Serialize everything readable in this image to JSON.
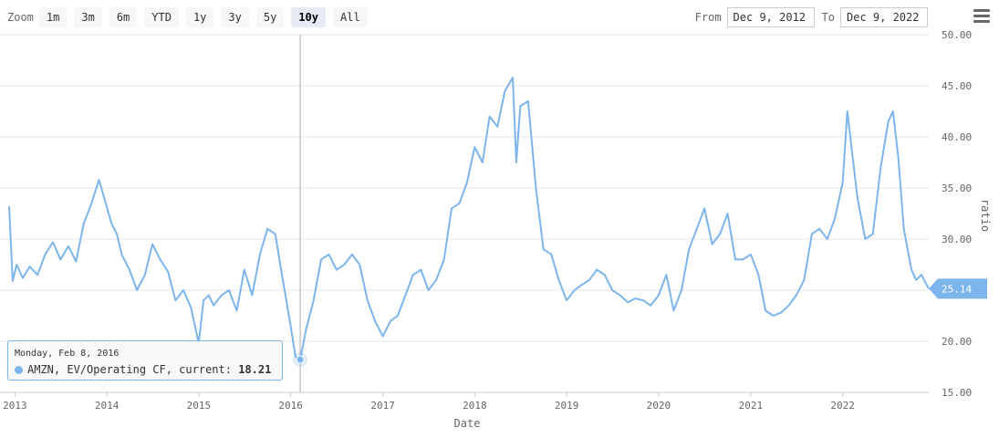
{
  "toolbar": {
    "zoom_label": "Zoom",
    "buttons": [
      "1m",
      "3m",
      "6m",
      "YTD",
      "1y",
      "3y",
      "5y",
      "10y",
      "All"
    ],
    "active": "10y"
  },
  "range": {
    "from_label": "From",
    "from_value": "Dec 9, 2012",
    "to_label": "To",
    "to_value": "Dec 9, 2022"
  },
  "menu": {
    "icon": "hamburger-menu-icon"
  },
  "tooltip": {
    "date": "Monday, Feb 8, 2016",
    "series_label": "AMZN, EV/Operating CF, current:",
    "value": "18.21"
  },
  "colors": {
    "series": "#7cb5ec",
    "grid": "#e6e6e6",
    "current_label_bg": "#7cb5ec"
  },
  "chart_data": {
    "type": "line",
    "title": "",
    "xlabel": "Date",
    "ylabel": "ratio",
    "ylim": [
      15,
      50
    ],
    "yticks": [
      "15.00",
      "20.00",
      "25.00",
      "30.00",
      "35.00",
      "40.00",
      "45.00",
      "50.00"
    ],
    "xticks": [
      "2013",
      "2014",
      "2015",
      "2016",
      "2017",
      "2018",
      "2019",
      "2020",
      "2021",
      "2022"
    ],
    "xlim": [
      "2012-12-09",
      "2022-12-09"
    ],
    "grid": true,
    "legend": "none",
    "current_label": "25.14",
    "highlight": {
      "x": "2016-02-08",
      "y": 18.21
    },
    "series": [
      {
        "name": "AMZN, EV/Operating CF",
        "x": [
          "2012-12-09",
          "2012-12-23",
          "2013-01-08",
          "2013-02-01",
          "2013-03-01",
          "2013-04-01",
          "2013-05-01",
          "2013-06-01",
          "2013-07-01",
          "2013-08-01",
          "2013-09-01",
          "2013-10-01",
          "2013-11-01",
          "2013-12-01",
          "2014-01-20",
          "2014-02-10",
          "2014-03-01",
          "2014-04-01",
          "2014-05-01",
          "2014-06-01",
          "2014-07-01",
          "2014-08-01",
          "2014-09-01",
          "2014-10-01",
          "2014-11-01",
          "2014-12-01",
          "2015-01-01",
          "2015-01-20",
          "2015-02-10",
          "2015-03-01",
          "2015-04-01",
          "2015-05-01",
          "2015-06-01",
          "2015-07-01",
          "2015-08-01",
          "2015-09-01",
          "2015-10-01",
          "2015-11-01",
          "2015-12-01",
          "2016-01-01",
          "2016-01-20",
          "2016-02-08",
          "2016-03-01",
          "2016-04-01",
          "2016-05-01",
          "2016-06-01",
          "2016-07-01",
          "2016-08-01",
          "2016-09-01",
          "2016-10-01",
          "2016-11-01",
          "2016-12-01",
          "2017-01-01",
          "2017-02-01",
          "2017-03-01",
          "2017-04-01",
          "2017-05-01",
          "2017-06-01",
          "2017-07-01",
          "2017-08-01",
          "2017-09-01",
          "2017-10-01",
          "2017-11-01",
          "2017-12-01",
          "2018-01-01",
          "2018-02-01",
          "2018-03-01",
          "2018-04-01",
          "2018-05-01",
          "2018-06-01",
          "2018-06-15",
          "2018-07-01",
          "2018-08-01",
          "2018-09-01",
          "2018-10-01",
          "2018-11-01",
          "2018-12-01",
          "2019-01-01",
          "2019-02-01",
          "2019-03-01",
          "2019-04-01",
          "2019-05-01",
          "2019-06-01",
          "2019-07-01",
          "2019-08-01",
          "2019-09-01",
          "2019-10-01",
          "2019-11-01",
          "2019-12-01",
          "2020-01-01",
          "2020-02-01",
          "2020-03-01",
          "2020-04-01",
          "2020-05-01",
          "2020-06-01",
          "2020-07-01",
          "2020-08-01",
          "2020-09-01",
          "2020-10-01",
          "2020-11-01",
          "2020-12-01",
          "2021-01-01",
          "2021-02-01",
          "2021-03-01",
          "2021-04-01",
          "2021-05-01",
          "2021-06-01",
          "2021-07-01",
          "2021-08-01",
          "2021-09-01",
          "2021-10-01",
          "2021-11-01",
          "2021-12-01",
          "2022-01-01",
          "2022-01-20",
          "2022-02-10",
          "2022-03-01",
          "2022-04-01",
          "2022-05-01",
          "2022-06-01",
          "2022-07-01",
          "2022-07-20",
          "2022-08-10",
          "2022-09-01",
          "2022-10-01",
          "2022-10-20",
          "2022-11-10",
          "2022-12-09"
        ],
        "values": [
          33.2,
          25.9,
          27.5,
          26.2,
          27.3,
          26.5,
          28.5,
          29.7,
          28.0,
          29.3,
          27.8,
          31.5,
          33.5,
          35.8,
          31.5,
          30.5,
          28.5,
          27.0,
          25.0,
          26.5,
          29.5,
          28.0,
          26.8,
          24.0,
          25.0,
          23.3,
          19.8,
          24.0,
          24.5,
          23.5,
          24.5,
          25.0,
          23.0,
          27.0,
          24.5,
          28.5,
          31.0,
          30.5,
          26.0,
          21.5,
          18.5,
          18.21,
          21.0,
          24.0,
          28.0,
          28.5,
          27.0,
          27.5,
          28.5,
          27.5,
          24.0,
          22.0,
          20.5,
          22.0,
          22.5,
          24.5,
          26.5,
          27.0,
          25.0,
          26.0,
          28.0,
          33.0,
          33.5,
          35.5,
          39.0,
          37.5,
          42.0,
          41.0,
          44.5,
          45.8,
          37.5,
          43.0,
          43.5,
          35.0,
          29.0,
          28.5,
          26.0,
          24.0,
          25.0,
          25.5,
          26.0,
          27.0,
          26.5,
          25.0,
          24.5,
          23.8,
          24.2,
          24.0,
          23.5,
          24.5,
          26.5,
          23.0,
          25.0,
          29.0,
          31.0,
          33.0,
          29.5,
          30.5,
          32.5,
          28.0,
          28.0,
          28.5,
          26.5,
          23.0,
          22.5,
          22.8,
          23.5,
          24.5,
          26.0,
          30.5,
          31.0,
          30.0,
          32.0,
          35.5,
          42.5,
          38.0,
          34.0,
          30.0,
          30.5,
          37.0,
          41.5,
          42.5,
          38.0,
          31.0,
          27.0,
          26.0,
          26.5,
          25.14
        ]
      }
    ]
  }
}
